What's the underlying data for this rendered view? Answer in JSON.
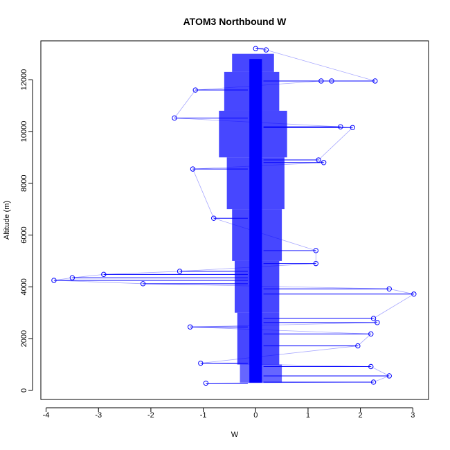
{
  "chart_data": {
    "type": "scatter",
    "title": "ATOM3 Northbound W",
    "xlabel": "W",
    "ylabel": "Altitude (m)",
    "xlim": [
      -4.1,
      3.3
    ],
    "ylim": [
      -350,
      13500
    ],
    "xticks": [
      "-4",
      "-3",
      "-2",
      "-1",
      "0",
      "1",
      "2",
      "3"
    ],
    "yticks": [
      "0",
      "2000",
      "4000",
      "6000",
      "8000",
      "10000",
      "12000"
    ],
    "series_color": "#0000ff",
    "marker": "open-circle",
    "connected_lines": true,
    "grid": false,
    "legend": "none",
    "notable_points": [
      {
        "x": -3.85,
        "y": 4250
      },
      {
        "x": -3.5,
        "y": 4350
      },
      {
        "x": -2.9,
        "y": 4480
      },
      {
        "x": -2.15,
        "y": 4120
      },
      {
        "x": -1.45,
        "y": 4600
      },
      {
        "x": -1.25,
        "y": 2450
      },
      {
        "x": -1.55,
        "y": 10520
      },
      {
        "x": -1.15,
        "y": 11600
      },
      {
        "x": -1.05,
        "y": 1050
      },
      {
        "x": -0.95,
        "y": 280
      },
      {
        "x": 1.25,
        "y": 11950
      },
      {
        "x": 1.45,
        "y": 11950
      },
      {
        "x": 2.28,
        "y": 11950
      },
      {
        "x": 1.62,
        "y": 10180
      },
      {
        "x": 1.85,
        "y": 10150
      },
      {
        "x": 2.55,
        "y": 3920
      },
      {
        "x": 3.02,
        "y": 3720
      },
      {
        "x": 2.25,
        "y": 2780
      },
      {
        "x": 2.32,
        "y": 2620
      },
      {
        "x": 2.2,
        "y": 2180
      },
      {
        "x": 1.95,
        "y": 1720
      },
      {
        "x": 2.2,
        "y": 920
      },
      {
        "x": 2.55,
        "y": 560
      },
      {
        "x": 2.25,
        "y": 320
      },
      {
        "x": 1.3,
        "y": 8800
      },
      {
        "x": 1.2,
        "y": 8900
      },
      {
        "x": 1.15,
        "y": 5400
      },
      {
        "x": 1.15,
        "y": 4900
      },
      {
        "x": -0.8,
        "y": 6650
      },
      {
        "x": -1.2,
        "y": 8550
      },
      {
        "x": 0.2,
        "y": 13150
      },
      {
        "x": 0.0,
        "y": 13200
      }
    ]
  }
}
